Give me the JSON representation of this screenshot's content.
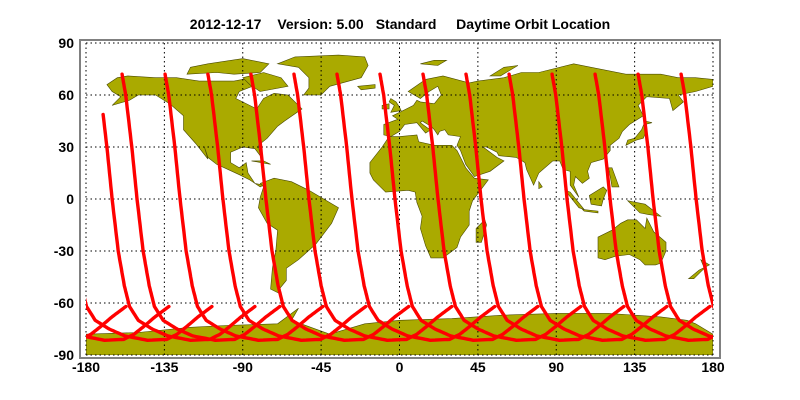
{
  "title": {
    "date": "2012-12-17",
    "version": "Version: 5.00",
    "quality": "Standard",
    "product": "Daytime Orbit Location"
  },
  "colors": {
    "land": "#aaaa00",
    "coast": "#4a4a00",
    "track": "#ff0000",
    "frame": "#808080",
    "grid": "#000000"
  },
  "chart_data": {
    "type": "map",
    "projection": "equirectangular",
    "xlim": [
      -180,
      180
    ],
    "ylim": [
      -90,
      90
    ],
    "x_ticks": [
      "-180",
      "-135",
      "-90",
      "-45",
      "0",
      "45",
      "90",
      "135",
      "180"
    ],
    "y_ticks": [
      "90",
      "60",
      "30",
      "0",
      "-30",
      "-60",
      "-90"
    ],
    "grid": "dotted",
    "series": [
      {
        "type": "orbit_tracks",
        "equator_crossing_lon": [
          -165,
          -150.7,
          -126,
          -101.4,
          -76.7,
          -52,
          -27.3,
          -2.6,
          22.1,
          46.8,
          71.5,
          96.2,
          120.9,
          145.6,
          170.3
        ],
        "first_track_start_lat": 52,
        "max_lat": 72
      }
    ]
  }
}
